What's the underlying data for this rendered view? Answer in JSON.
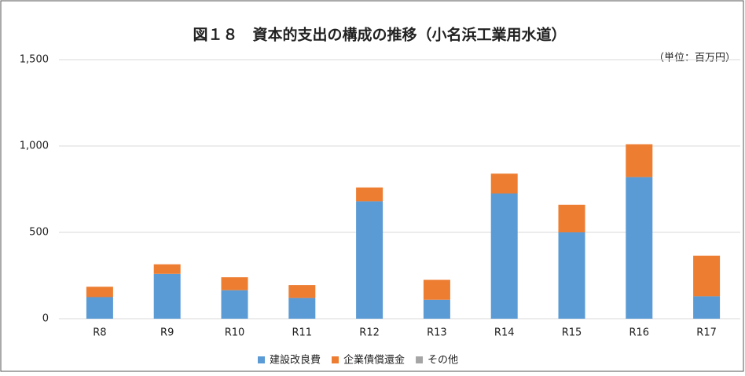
{
  "chart_data": {
    "type": "stacked_bar",
    "title": "図１８　資本的支出の構成の推移（小名浜工業用水道）",
    "unit_label": "（単位：百万円）",
    "categories": [
      "R8",
      "R9",
      "R10",
      "R11",
      "R12",
      "R13",
      "R14",
      "R15",
      "R16",
      "R17"
    ],
    "series": [
      {
        "name": "建設改良費",
        "color": "#5b9bd5",
        "values": [
          125,
          260,
          165,
          120,
          680,
          110,
          725,
          500,
          820,
          130
        ]
      },
      {
        "name": "企業債償還金",
        "color": "#ed7d31",
        "values": [
          60,
          55,
          75,
          75,
          80,
          115,
          115,
          160,
          190,
          235
        ]
      },
      {
        "name": "その他",
        "color": "#a5a5a5",
        "values": [
          0,
          0,
          0,
          0,
          0,
          0,
          0,
          0,
          0,
          0
        ]
      }
    ],
    "ylim": [
      0,
      1500
    ],
    "yticks": [
      0,
      500,
      {
        "value": 1000,
        "label": "1,000"
      },
      {
        "value": 1500,
        "label": "1,500"
      }
    ],
    "grid": true
  }
}
